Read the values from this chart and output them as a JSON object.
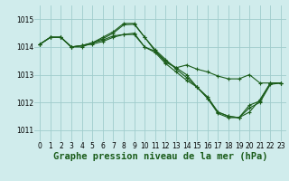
{
  "background_color": "#d0ecec",
  "grid_color": "#a0cccc",
  "line_color": "#1a5c1a",
  "xlabel": "Graphe pression niveau de la mer (hPa)",
  "xlim": [
    -0.5,
    23.5
  ],
  "ylim": [
    1010.6,
    1015.5
  ],
  "yticks": [
    1011,
    1012,
    1013,
    1014,
    1015
  ],
  "xticks": [
    0,
    1,
    2,
    3,
    4,
    5,
    6,
    7,
    8,
    9,
    10,
    11,
    12,
    13,
    14,
    15,
    16,
    17,
    18,
    19,
    20,
    21,
    22,
    23
  ],
  "series": [
    [
      1014.1,
      1014.35,
      1014.35,
      1014.0,
      1014.0,
      1014.15,
      1014.25,
      1014.4,
      1014.45,
      1014.45,
      1014.0,
      1013.85,
      1013.45,
      1013.25,
      1013.35,
      1013.2,
      1013.1,
      1012.95,
      1012.85,
      1012.85,
      1013.0,
      1012.7,
      1012.7,
      1012.7
    ],
    [
      1014.1,
      1014.35,
      1014.35,
      1014.0,
      1014.05,
      1014.15,
      1014.35,
      1014.55,
      1014.85,
      1014.85,
      1014.35,
      1013.9,
      1013.55,
      1013.2,
      1012.9,
      1012.55,
      1012.15,
      1011.65,
      1011.5,
      1011.45,
      1011.65,
      1012.1,
      1012.7,
      1012.7
    ],
    [
      1014.1,
      1014.35,
      1014.35,
      1014.0,
      1014.05,
      1014.15,
      1014.3,
      1014.5,
      1014.8,
      1014.82,
      1014.35,
      1013.85,
      1013.5,
      1013.25,
      1013.0,
      1012.55,
      1012.2,
      1011.65,
      1011.5,
      1011.45,
      1011.9,
      1012.05,
      1012.7,
      1012.7
    ],
    [
      1014.1,
      1014.35,
      1014.35,
      1014.0,
      1014.05,
      1014.1,
      1014.2,
      1014.35,
      1014.45,
      1014.5,
      1014.0,
      1013.8,
      1013.4,
      1013.1,
      1012.8,
      1012.55,
      1012.15,
      1011.6,
      1011.45,
      1011.45,
      1011.8,
      1012.0,
      1012.65,
      1012.7
    ]
  ],
  "marker": "+",
  "markersize": 3,
  "linewidth": 0.8,
  "tick_fontsize": 5.5,
  "xlabel_fontsize": 7.5,
  "xlabel_fontweight": "bold"
}
